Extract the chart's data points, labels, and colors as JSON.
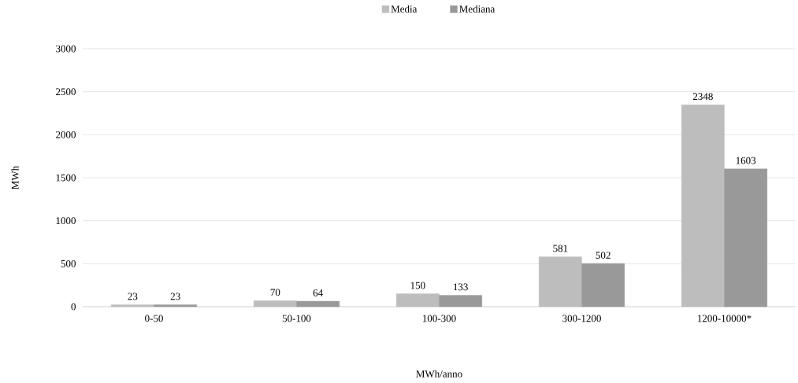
{
  "chart_data": {
    "type": "bar",
    "xlabel": "MWh/anno",
    "ylabel": "MWh",
    "categories": [
      "0-50",
      "50-100",
      "100-300",
      "300-1200",
      "1200-10000*"
    ],
    "series": [
      {
        "name": "Media",
        "color": "#bdbdbd",
        "values": [
          23,
          70,
          150,
          581,
          2348
        ]
      },
      {
        "name": "Mediana",
        "color": "#999999",
        "values": [
          23,
          64,
          133,
          502,
          1603
        ]
      }
    ],
    "ylim": [
      0,
      3000
    ],
    "yticks": [
      0,
      500,
      1000,
      1500,
      2000,
      2500,
      3000
    ],
    "grid": "y",
    "legend": "top",
    "data_labels": true
  }
}
